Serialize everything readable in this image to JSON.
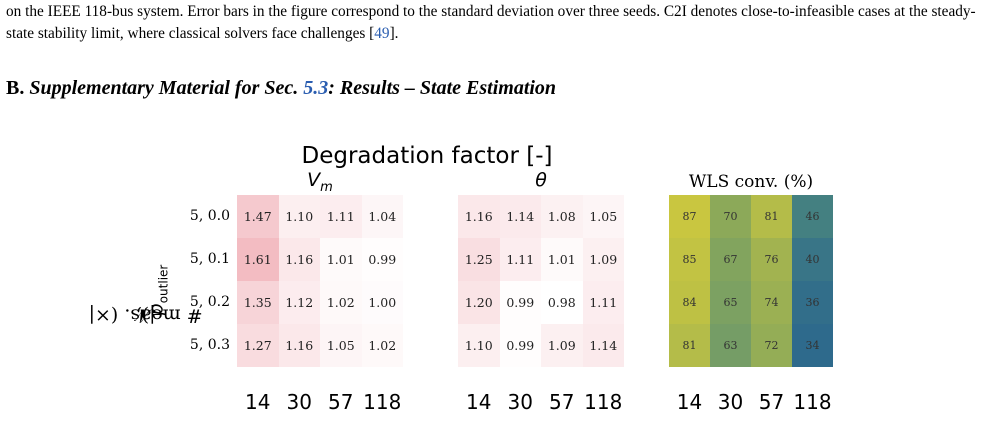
{
  "intro": {
    "text_1": "on the IEEE 118-bus system. Error bars in the figure correspond to the standard deviation over three seeds. C2I denotes close-to-infeasible cases at the steady-state stability limit, where classical solvers face challenges [",
    "citation": "49",
    "text_2": "]."
  },
  "section": {
    "label": "B.",
    "title_1": "Supplementary Material for Sec.",
    "section_ref": "5.3",
    "title_2": ": Results – State Estimation"
  },
  "figure": {
    "title": "Degradation factor [-]",
    "ylabel_prefix": "# meas. (×|",
    "ylabel_symbol": "𝒩",
    "ylabel_mid": "|), ",
    "ylabel_p": "p",
    "ylabel_sub": "outlier",
    "row_labels": [
      "5, 0.0",
      "5, 0.1",
      "5, 0.2",
      "5, 0.3"
    ],
    "x_ticks": [
      "14",
      "30",
      "57",
      "118"
    ],
    "panels": [
      {
        "title": "V",
        "title_sub": "m",
        "values": [
          [
            "1.47",
            "1.10",
            "1.11",
            "1.04"
          ],
          [
            "1.61",
            "1.16",
            "1.01",
            "0.99"
          ],
          [
            "1.35",
            "1.12",
            "1.02",
            "1.00"
          ],
          [
            "1.27",
            "1.16",
            "1.05",
            "1.02"
          ]
        ]
      },
      {
        "title": "θ",
        "values": [
          [
            "1.16",
            "1.14",
            "1.08",
            "1.05"
          ],
          [
            "1.25",
            "1.11",
            "1.01",
            "1.09"
          ],
          [
            "1.20",
            "0.99",
            "0.98",
            "1.11"
          ],
          [
            "1.10",
            "0.99",
            "1.09",
            "1.14"
          ]
        ]
      },
      {
        "title": "WLS conv. (%)",
        "values": [
          [
            "87",
            "70",
            "81",
            "46"
          ],
          [
            "85",
            "67",
            "76",
            "40"
          ],
          [
            "84",
            "65",
            "74",
            "36"
          ],
          [
            "81",
            "63",
            "72",
            "34"
          ]
        ]
      }
    ]
  },
  "chart_data": {
    "type": "heatmap",
    "title": "Degradation factor [-]",
    "ylabel": "# meas. (×|𝒩|), p_outlier",
    "y_categories": [
      "5, 0.0",
      "5, 0.1",
      "5, 0.2",
      "5, 0.3"
    ],
    "x_categories": [
      "14",
      "30",
      "57",
      "118"
    ],
    "colors": {
      "degradation_low": "#ffffff",
      "degradation_high": "#f3bcc2",
      "wls_low": "#2e6a8c",
      "wls_high": "#c9c640"
    },
    "panels": [
      {
        "name": "V_m",
        "values": [
          [
            1.47,
            1.1,
            1.11,
            1.04
          ],
          [
            1.61,
            1.16,
            1.01,
            0.99
          ],
          [
            1.35,
            1.12,
            1.02,
            1.0
          ],
          [
            1.27,
            1.16,
            1.05,
            1.02
          ]
        ]
      },
      {
        "name": "θ",
        "values": [
          [
            1.16,
            1.14,
            1.08,
            1.05
          ],
          [
            1.25,
            1.11,
            1.01,
            1.09
          ],
          [
            1.2,
            0.99,
            0.98,
            1.11
          ],
          [
            1.1,
            0.99,
            1.09,
            1.14
          ]
        ]
      },
      {
        "name": "WLS conv. (%)",
        "values": [
          [
            87,
            70,
            81,
            46
          ],
          [
            85,
            67,
            76,
            40
          ],
          [
            84,
            65,
            74,
            36
          ],
          [
            81,
            63,
            72,
            34
          ]
        ]
      }
    ]
  }
}
